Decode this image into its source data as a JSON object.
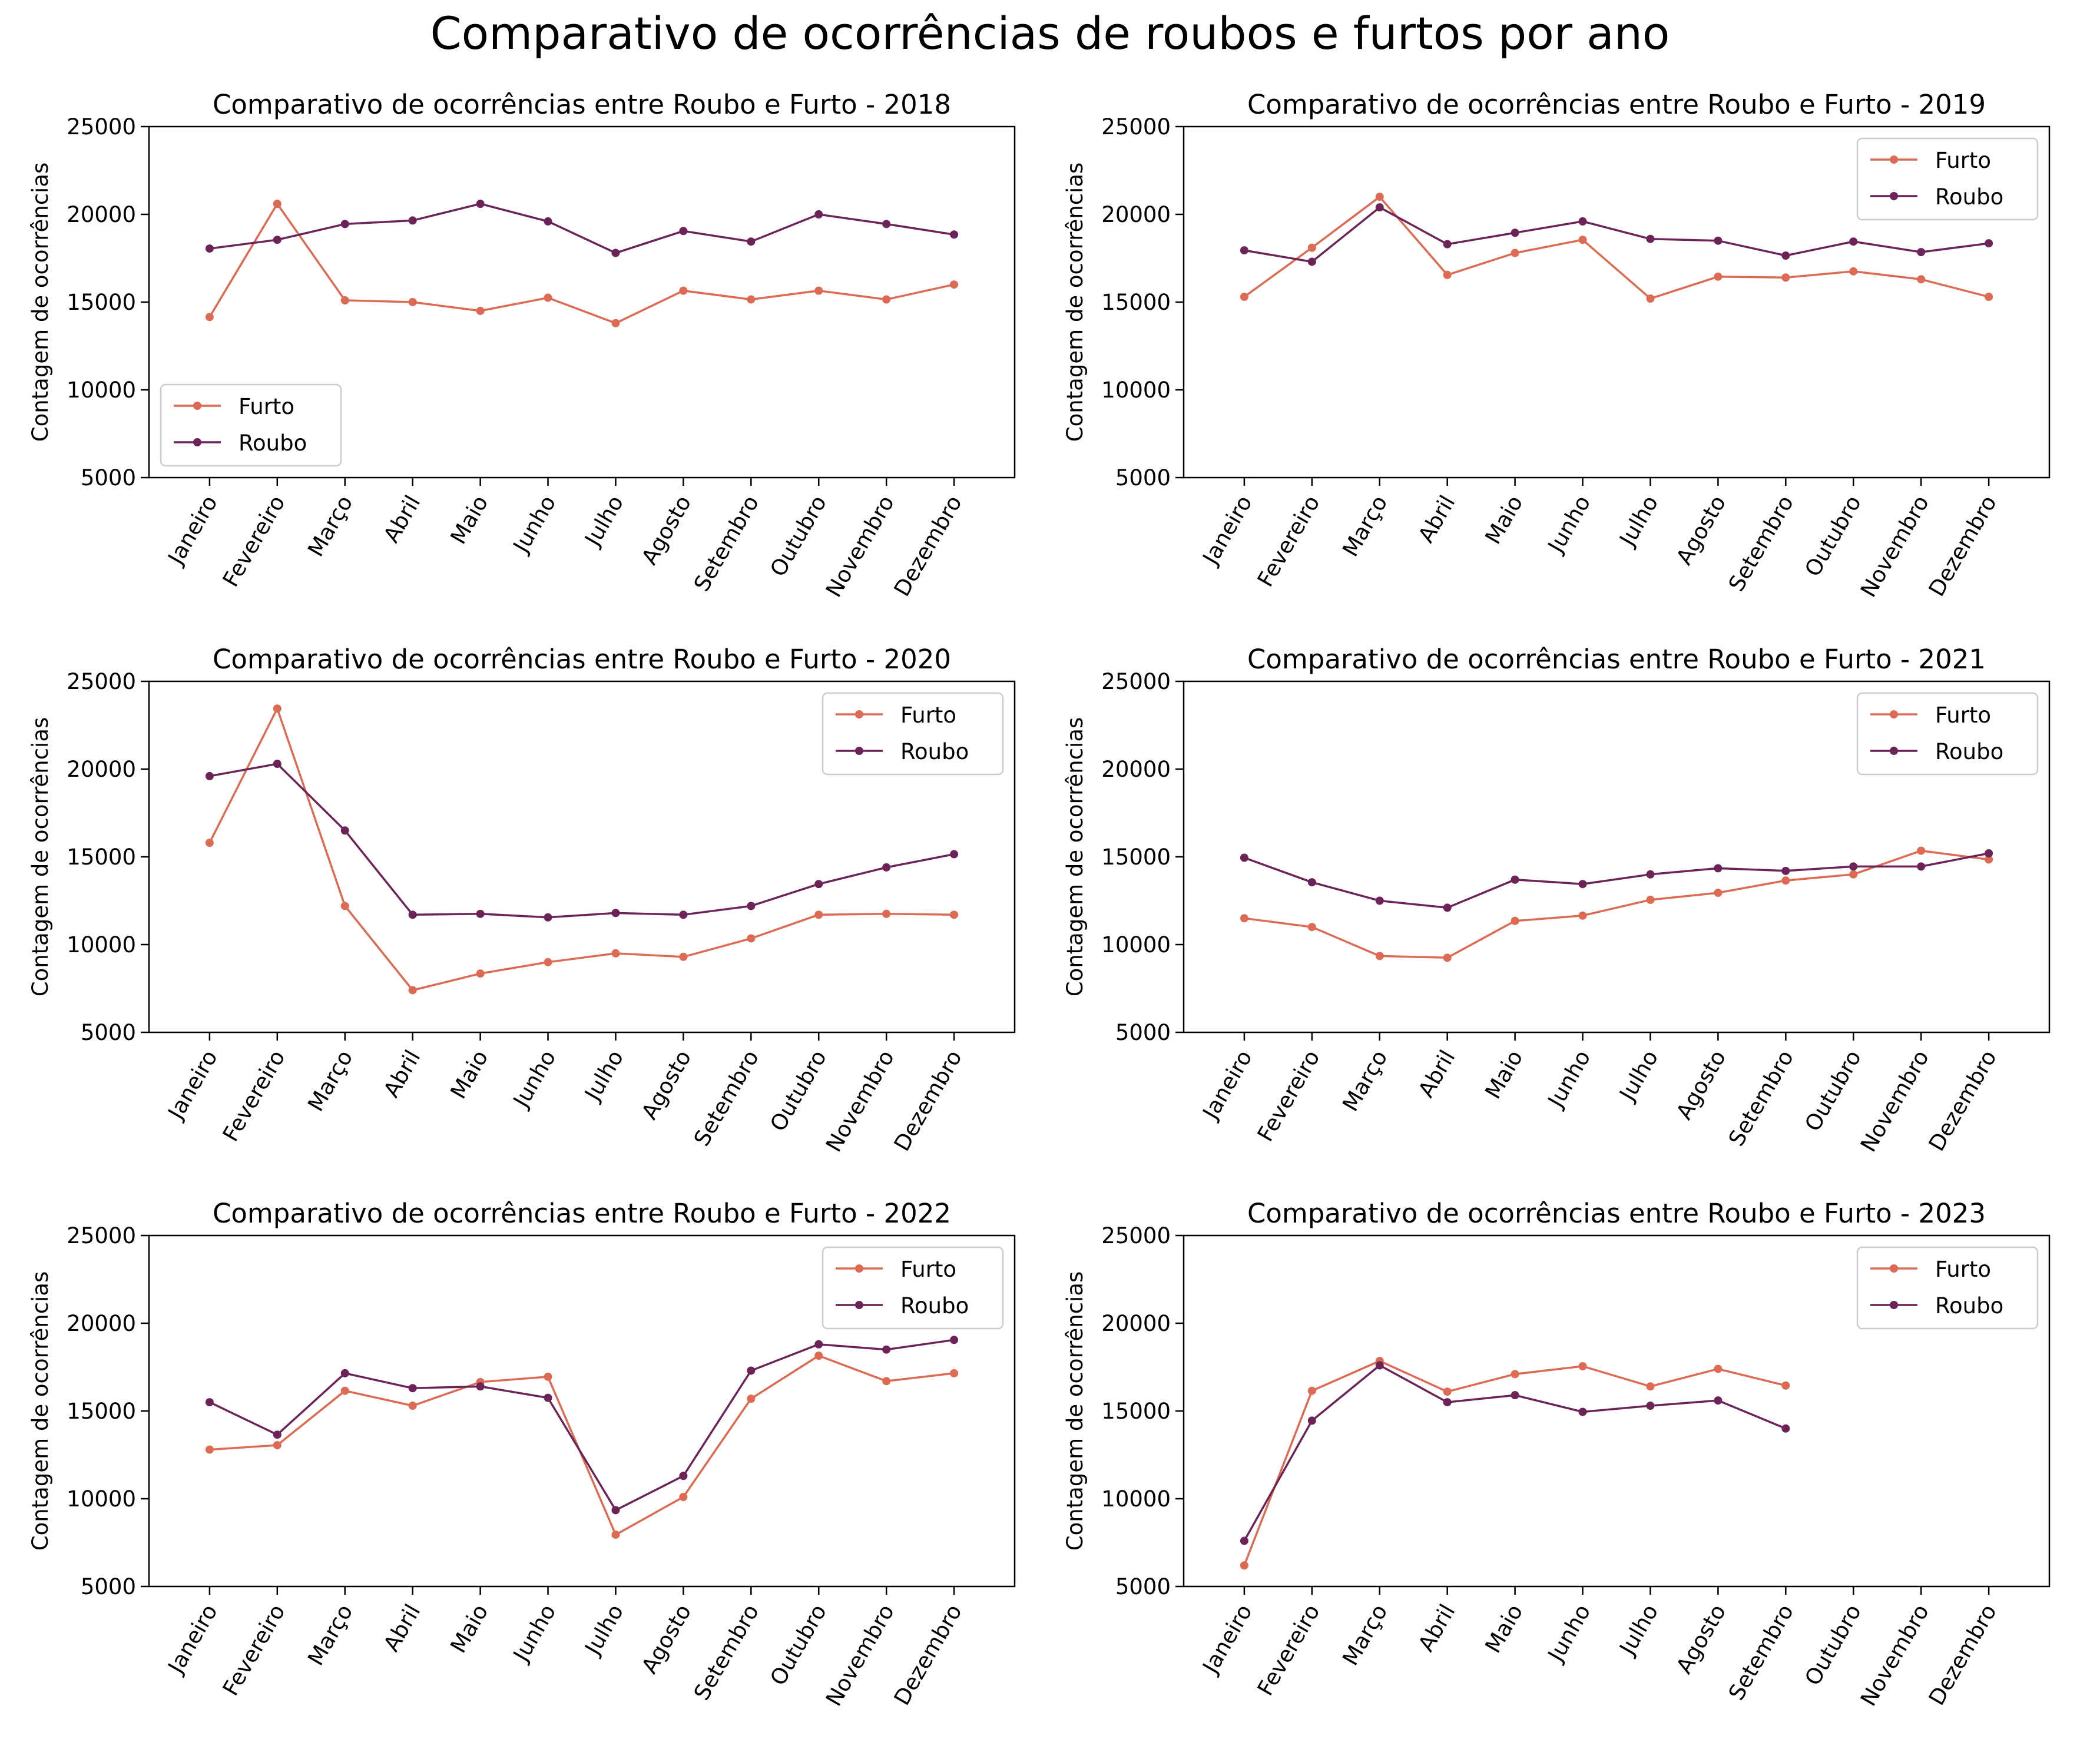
{
  "figure": {
    "suptitle": "Comparativo de ocorrências de roubos e furtos por ano"
  },
  "style": {
    "furto_color": "#dd6a52",
    "roubo_color": "#6c2458"
  },
  "chart_data": [
    {
      "type": "line",
      "title": "Comparativo de ocorrências entre Roubo e Furto - 2018",
      "ylabel": "Contagem de ocorrências",
      "ylim": [
        5000,
        25000
      ],
      "yticks": [
        5000,
        10000,
        15000,
        20000,
        25000
      ],
      "categories": [
        "Janeiro",
        "Fevereiro",
        "Março",
        "Abril",
        "Maio",
        "Junho",
        "Julho",
        "Agosto",
        "Setembro",
        "Outubro",
        "Novembro",
        "Dezembro"
      ],
      "legend_position": "lower-left",
      "series": [
        {
          "name": "Furto",
          "values": [
            14150,
            20600,
            15100,
            15000,
            14500,
            15250,
            13800,
            15650,
            15150,
            15650,
            15150,
            16000
          ]
        },
        {
          "name": "Roubo",
          "values": [
            18050,
            18550,
            19450,
            19650,
            20600,
            19600,
            17800,
            19050,
            18450,
            20000,
            19450,
            18850
          ]
        }
      ]
    },
    {
      "type": "line",
      "title": "Comparativo de ocorrências entre Roubo e Furto - 2019",
      "ylabel": "Contagem de ocorrências",
      "ylim": [
        5000,
        25000
      ],
      "yticks": [
        5000,
        10000,
        15000,
        20000,
        25000
      ],
      "categories": [
        "Janeiro",
        "Fevereiro",
        "Março",
        "Abril",
        "Maio",
        "Junho",
        "Julho",
        "Agosto",
        "Setembro",
        "Outubro",
        "Novembro",
        "Dezembro"
      ],
      "legend_position": "upper-right",
      "series": [
        {
          "name": "Furto",
          "values": [
            15300,
            18100,
            21000,
            16550,
            17800,
            18550,
            15200,
            16450,
            16400,
            16750,
            16300,
            15300
          ]
        },
        {
          "name": "Roubo",
          "values": [
            17950,
            17300,
            20400,
            18300,
            18950,
            19600,
            18600,
            18500,
            17650,
            18450,
            17850,
            18350
          ]
        }
      ]
    },
    {
      "type": "line",
      "title": "Comparativo de ocorrências entre Roubo e Furto - 2020",
      "ylabel": "Contagem de ocorrências",
      "ylim": [
        5000,
        25000
      ],
      "yticks": [
        5000,
        10000,
        15000,
        20000,
        25000
      ],
      "categories": [
        "Janeiro",
        "Fevereiro",
        "Março",
        "Abril",
        "Maio",
        "Junho",
        "Julho",
        "Agosto",
        "Setembro",
        "Outubro",
        "Novembro",
        "Dezembro"
      ],
      "legend_position": "upper-right",
      "series": [
        {
          "name": "Furto",
          "values": [
            15800,
            23450,
            12200,
            7400,
            8350,
            9000,
            9500,
            9300,
            10350,
            11700,
            11750,
            11700
          ]
        },
        {
          "name": "Roubo",
          "values": [
            19600,
            20300,
            16500,
            11700,
            11750,
            11550,
            11800,
            11700,
            12200,
            13450,
            14400,
            15150
          ]
        }
      ]
    },
    {
      "type": "line",
      "title": "Comparativo de ocorrências entre Roubo e Furto - 2021",
      "ylabel": "Contagem de ocorrências",
      "ylim": [
        5000,
        25000
      ],
      "yticks": [
        5000,
        10000,
        15000,
        20000,
        25000
      ],
      "categories": [
        "Janeiro",
        "Fevereiro",
        "Março",
        "Abril",
        "Maio",
        "Junho",
        "Julho",
        "Agosto",
        "Setembro",
        "Outubro",
        "Novembro",
        "Dezembro"
      ],
      "legend_position": "upper-right",
      "series": [
        {
          "name": "Furto",
          "values": [
            11500,
            11000,
            9350,
            9250,
            11350,
            11650,
            12550,
            12950,
            13650,
            14000,
            15350,
            14850
          ]
        },
        {
          "name": "Roubo",
          "values": [
            14950,
            13550,
            12500,
            12100,
            13700,
            13450,
            14000,
            14350,
            14200,
            14450,
            14450,
            15200
          ]
        }
      ]
    },
    {
      "type": "line",
      "title": "Comparativo de ocorrências entre Roubo e Furto - 2022",
      "ylabel": "Contagem de ocorrências",
      "ylim": [
        5000,
        25000
      ],
      "yticks": [
        5000,
        10000,
        15000,
        20000,
        25000
      ],
      "categories": [
        "Janeiro",
        "Fevereiro",
        "Março",
        "Abril",
        "Maio",
        "Junho",
        "Julho",
        "Agosto",
        "Setembro",
        "Outubro",
        "Novembro",
        "Dezembro"
      ],
      "legend_position": "upper-right",
      "series": [
        {
          "name": "Furto",
          "values": [
            12800,
            13050,
            16150,
            15300,
            16650,
            16950,
            7950,
            10100,
            15700,
            18150,
            16700,
            17150
          ]
        },
        {
          "name": "Roubo",
          "values": [
            15500,
            13650,
            17150,
            16300,
            16400,
            15750,
            9350,
            11300,
            17300,
            18800,
            18500,
            19050
          ]
        }
      ]
    },
    {
      "type": "line",
      "title": "Comparativo de ocorrências entre Roubo e Furto - 2023",
      "ylabel": "Contagem de ocorrências",
      "ylim": [
        5000,
        25000
      ],
      "yticks": [
        5000,
        10000,
        15000,
        20000,
        25000
      ],
      "categories": [
        "Janeiro",
        "Fevereiro",
        "Março",
        "Abril",
        "Maio",
        "Junho",
        "Julho",
        "Agosto",
        "Setembro",
        "Outubro",
        "Novembro",
        "Dezembro"
      ],
      "legend_position": "upper-right",
      "series": [
        {
          "name": "Furto",
          "values": [
            6200,
            16150,
            17850,
            16100,
            17100,
            17550,
            16400,
            17400,
            16450,
            null,
            null,
            null
          ]
        },
        {
          "name": "Roubo",
          "values": [
            7600,
            14450,
            17600,
            15500,
            15900,
            14950,
            15300,
            15600,
            14000,
            null,
            null,
            null
          ]
        }
      ]
    }
  ]
}
